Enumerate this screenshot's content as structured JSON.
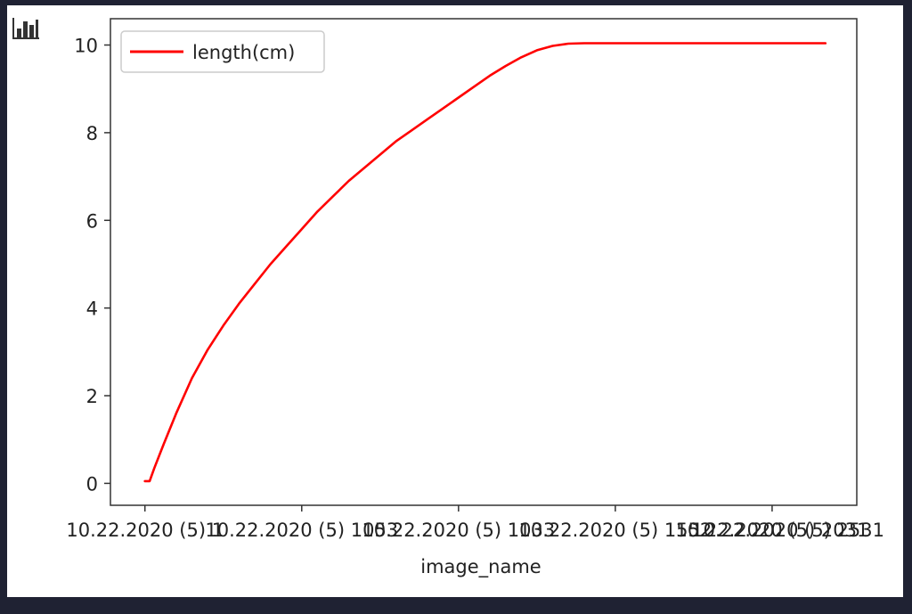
{
  "toolbar": {
    "icon": "bar-chart-icon"
  },
  "chart_data": {
    "type": "line",
    "title": "",
    "xlabel": "image_name",
    "ylabel": "",
    "grid": false,
    "legend": {
      "position": "top-left",
      "entries": [
        "length(cm)"
      ]
    },
    "x_tick_labels": [
      "10.22.2020 (5) 1",
      "10.22.2020 (5) 1053",
      "10.22.2020 (5) 1033",
      "10.22.2020 (5) 1552",
      "10.22.2020 (5) 2031",
      "10.22.2020 (5) 2531"
    ],
    "x_tick_positions": [
      0,
      500,
      1000,
      1500,
      2000,
      2531
    ],
    "xlim": [
      -110,
      2270
    ],
    "ylim": [
      -0.5,
      10.6
    ],
    "y_ticks": [
      0,
      2,
      4,
      6,
      8,
      10
    ],
    "series": [
      {
        "name": "length(cm)",
        "color": "#ff0000",
        "x": [
          0,
          15,
          30,
          60,
          100,
          150,
          200,
          250,
          300,
          350,
          400,
          450,
          500,
          550,
          600,
          650,
          700,
          750,
          800,
          850,
          900,
          950,
          1000,
          1050,
          1100,
          1150,
          1200,
          1250,
          1300,
          1350,
          1400,
          1450,
          1500,
          1550,
          1600,
          1650,
          1700,
          1750,
          1800,
          1850,
          1900,
          1950,
          2000,
          2050,
          2100,
          2150,
          2170
        ],
        "y": [
          0.05,
          0.05,
          0.35,
          0.9,
          1.6,
          2.4,
          3.05,
          3.6,
          4.1,
          4.55,
          5.0,
          5.4,
          5.8,
          6.2,
          6.55,
          6.9,
          7.2,
          7.5,
          7.8,
          8.05,
          8.3,
          8.55,
          8.8,
          9.05,
          9.3,
          9.52,
          9.72,
          9.88,
          9.98,
          10.03,
          10.04,
          10.04,
          10.04,
          10.04,
          10.04,
          10.04,
          10.04,
          10.04,
          10.04,
          10.04,
          10.04,
          10.04,
          10.04,
          10.04,
          10.04,
          10.04,
          10.04
        ]
      }
    ]
  }
}
